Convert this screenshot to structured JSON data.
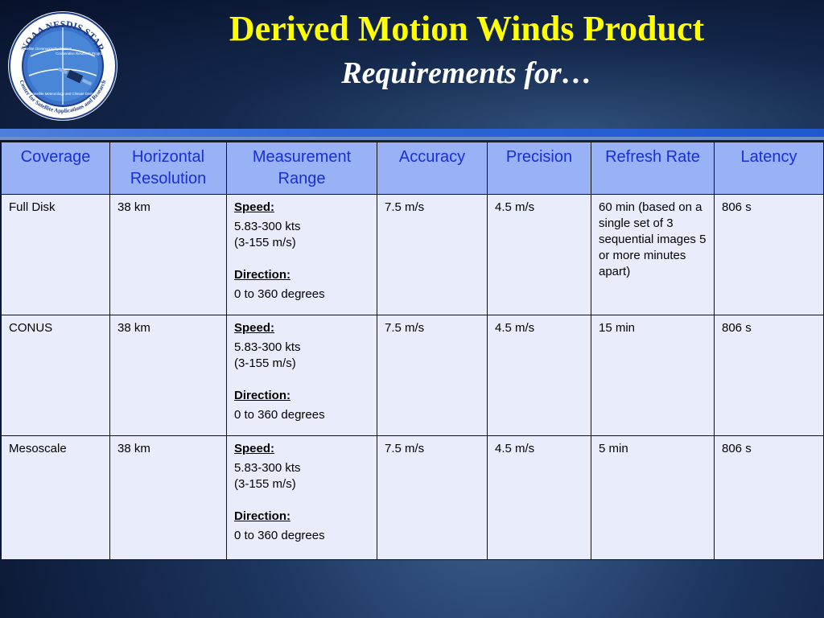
{
  "slide": {
    "title": "Derived Motion Winds Product",
    "subtitle": "Requirements for…"
  },
  "logo": {
    "ring_text": "NOAA NESDIS STAR",
    "bottom_text": "Center for Satellite Applications and Research",
    "segments": [
      "Satellite Oceanography Division",
      "Cooperative Research Program",
      "Satellite Meteorology and Climate Division"
    ]
  },
  "table": {
    "headers": [
      "Coverage",
      "Horizontal Resolution",
      "Measurement Range",
      "Accuracy",
      "Precision",
      "Refresh Rate",
      "Latency"
    ],
    "rows": [
      {
        "coverage": "Full Disk",
        "resolution": "38 km",
        "speed_label": "Speed:",
        "speed_kts": "5.83-300 kts",
        "speed_ms": "(3-155 m/s)",
        "direction_label": "Direction:",
        "direction_value": "0 to 360 degrees",
        "accuracy": "7.5 m/s",
        "precision": "4.5 m/s",
        "refresh": "60 min (based on a single set of 3 sequential images 5 or more minutes apart)",
        "latency": "806 s"
      },
      {
        "coverage": "CONUS",
        "resolution": "38 km",
        "speed_label": "Speed:",
        "speed_kts": "5.83-300 kts",
        "speed_ms": "(3-155 m/s)",
        "direction_label": "Direction:",
        "direction_value": "0 to 360 degrees",
        "accuracy": "7.5 m/s",
        "precision": "4.5 m/s",
        "refresh": "15 min",
        "latency": "806 s"
      },
      {
        "coverage": "Mesoscale",
        "resolution": "38 km",
        "speed_label": "Speed:",
        "speed_kts": "5.83-300 kts",
        "speed_ms": "(3-155 m/s)",
        "direction_label": "Direction:",
        "direction_value": "0 to 360 degrees",
        "accuracy": "7.5 m/s",
        "precision": "4.5 m/s",
        "refresh": "5 min",
        "latency": "806 s"
      }
    ]
  },
  "colors": {
    "title": "#ffff00",
    "header_bg": "#99b1f5",
    "header_text": "#1a2fd6",
    "cell_bg": "#e9edfb",
    "accent_bar": "#2f66d6"
  }
}
